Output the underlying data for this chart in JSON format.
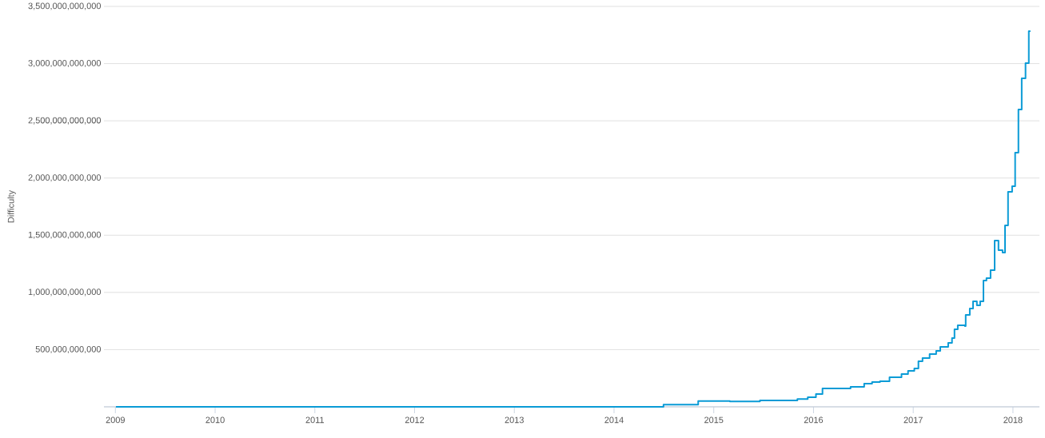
{
  "chart_data": {
    "type": "step",
    "ylabel": "Difficulty",
    "x": [
      "2009-01-03",
      "2011-01-01",
      "2013-01-01",
      "2014-01-01",
      "2014-07-01",
      "2014-11-05",
      "2015-03-01",
      "2015-06-19",
      "2015-11-03",
      "2015-12-11",
      "2016-01-10",
      "2016-02-03",
      "2016-05-16",
      "2016-07-05",
      "2016-08-03",
      "2016-09-01",
      "2016-10-06",
      "2016-11-19",
      "2016-12-13",
      "2017-01-05",
      "2017-01-20",
      "2017-02-04",
      "2017-03-02",
      "2017-03-26",
      "2017-04-10",
      "2017-05-09",
      "2017-05-23",
      "2017-06-01",
      "2017-06-13",
      "2017-07-09",
      "2017-07-12",
      "2017-07-27",
      "2017-08-08",
      "2017-08-22",
      "2017-09-03",
      "2017-09-15",
      "2017-09-26",
      "2017-10-11",
      "2017-10-26",
      "2017-11-09",
      "2017-11-24",
      "2017-12-03",
      "2017-12-14",
      "2017-12-29",
      "2018-01-09",
      "2018-01-21",
      "2018-02-02",
      "2018-02-16",
      "2018-02-28",
      "2018-03-06"
    ],
    "series": [
      {
        "color": "#0a9bd6",
        "values": [
          0,
          0,
          0,
          0,
          20000000000,
          51000000000,
          47000000000,
          56000000000,
          68000000000,
          84000000000,
          112000000000,
          160000000000,
          175000000000,
          203000000000,
          217000000000,
          224000000000,
          259000000000,
          286000000000,
          314000000000,
          335000000000,
          398000000000,
          426000000000,
          461000000000,
          489000000000,
          524000000000,
          559000000000,
          601000000000,
          678000000000,
          713000000000,
          706000000000,
          803000000000,
          859000000000,
          922000000000,
          887000000000,
          922000000000,
          1104000000000,
          1125000000000,
          1195000000000,
          1453000000000,
          1369000000000,
          1348000000000,
          1586000000000,
          1879000000000,
          1928000000000,
          2222000000000,
          2599000000000,
          2871000000000,
          3004000000000,
          3283000000000,
          3283000000000
        ]
      }
    ],
    "xlim": [
      "2008-11-20",
      "2018-04-08"
    ],
    "xticks": [
      "2009",
      "2010",
      "2011",
      "2012",
      "2013",
      "2014",
      "2015",
      "2016",
      "2017",
      "2018"
    ],
    "ylim": [
      0,
      3500000000000
    ],
    "yticks": [
      {
        "value": 0,
        "label": null
      },
      {
        "value": 500000000000,
        "label": "500,000,000,000"
      },
      {
        "value": 1000000000000,
        "label": "1,000,000,000,000"
      },
      {
        "value": 1500000000000,
        "label": "1,500,000,000,000"
      },
      {
        "value": 2000000000000,
        "label": "2,000,000,000,000"
      },
      {
        "value": 2500000000000,
        "label": "2,500,000,000,000"
      },
      {
        "value": 3000000000000,
        "label": "3,000,000,000,000"
      },
      {
        "value": 3500000000000,
        "label": "3,500,000,000,000"
      }
    ],
    "grid": "y"
  }
}
